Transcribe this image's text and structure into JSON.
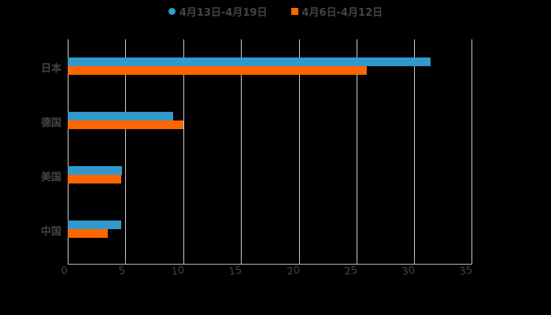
{
  "chart_data": {
    "type": "bar",
    "orientation": "horizontal",
    "title": "",
    "xlabel": "",
    "ylabel": "",
    "categories": [
      "日本",
      "德国",
      "美国",
      "中国"
    ],
    "series": [
      {
        "name": "4月13日-4月19日",
        "color": "#3399CC",
        "marker": "circle",
        "values": [
          31.4,
          9.1,
          4.7,
          4.6
        ]
      },
      {
        "name": "4月6日-4月12日",
        "color": "#FF6600",
        "marker": "square",
        "values": [
          25.9,
          10.0,
          4.6,
          3.5
        ]
      }
    ],
    "xlim": [
      0,
      35
    ],
    "xticks": [
      0,
      5,
      10,
      15,
      20,
      25,
      30,
      35
    ],
    "grid": true,
    "legend_position": "top"
  },
  "legend": {
    "items": [
      {
        "label": "4月13日-4月19日",
        "color": "#3399CC"
      },
      {
        "label": "4月6日-4月12日",
        "color": "#FF6600"
      }
    ]
  },
  "axis": {
    "ticks": [
      "0",
      "5",
      "10",
      "15",
      "20",
      "25",
      "30",
      "35"
    ]
  },
  "categories": [
    "日本",
    "德国",
    "美国",
    "中国"
  ]
}
